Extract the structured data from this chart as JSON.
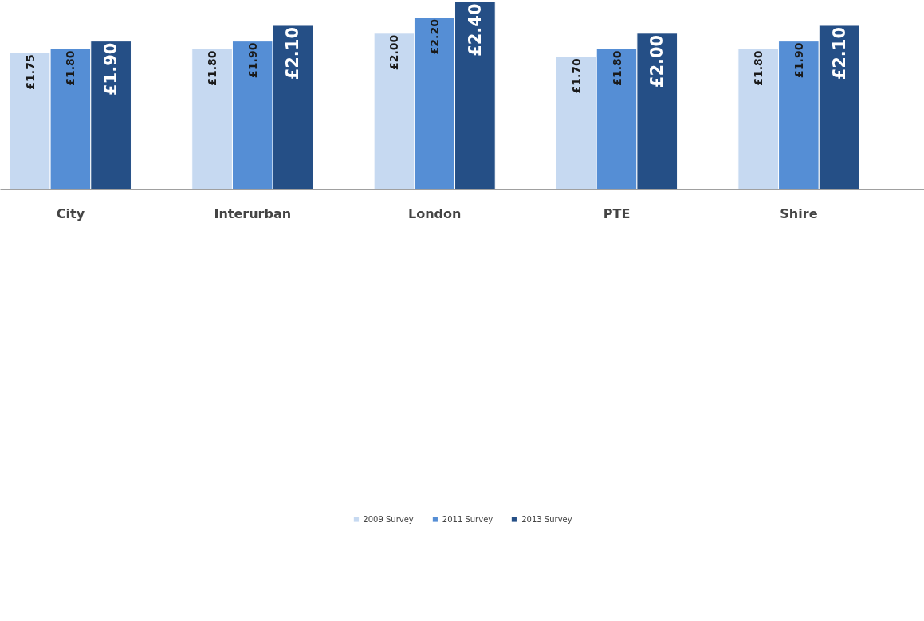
{
  "chart_data": {
    "type": "bar",
    "categories": [
      "City",
      "Interurban",
      "London",
      "PTE",
      "Shire"
    ],
    "ylim": [
      0,
      2.42
    ],
    "legend": "bottom",
    "grid": false,
    "series": [
      {
        "name": "2009 Survey",
        "color": "#c6d9f1",
        "values": [
          1.75,
          1.8,
          2.0,
          1.7,
          1.8
        ],
        "value_labels": [
          "£1.75",
          "£1.80",
          "£2.00",
          "£1.70",
          "£1.80"
        ]
      },
      {
        "name": "2011 Survey",
        "color": "#558ed5",
        "values": [
          1.8,
          1.9,
          2.2,
          1.8,
          1.9
        ],
        "value_labels": [
          "£1.80",
          "£1.90",
          "£2.20",
          "£1.80",
          "£1.90"
        ]
      },
      {
        "name": "2013 Survey",
        "color": "#254f86",
        "values": [
          1.9,
          2.1,
          2.4,
          2.0,
          2.1
        ],
        "value_labels": [
          "£1.90",
          "£2.10",
          "£2.40",
          "£2.00",
          "£2.10"
        ]
      }
    ]
  }
}
